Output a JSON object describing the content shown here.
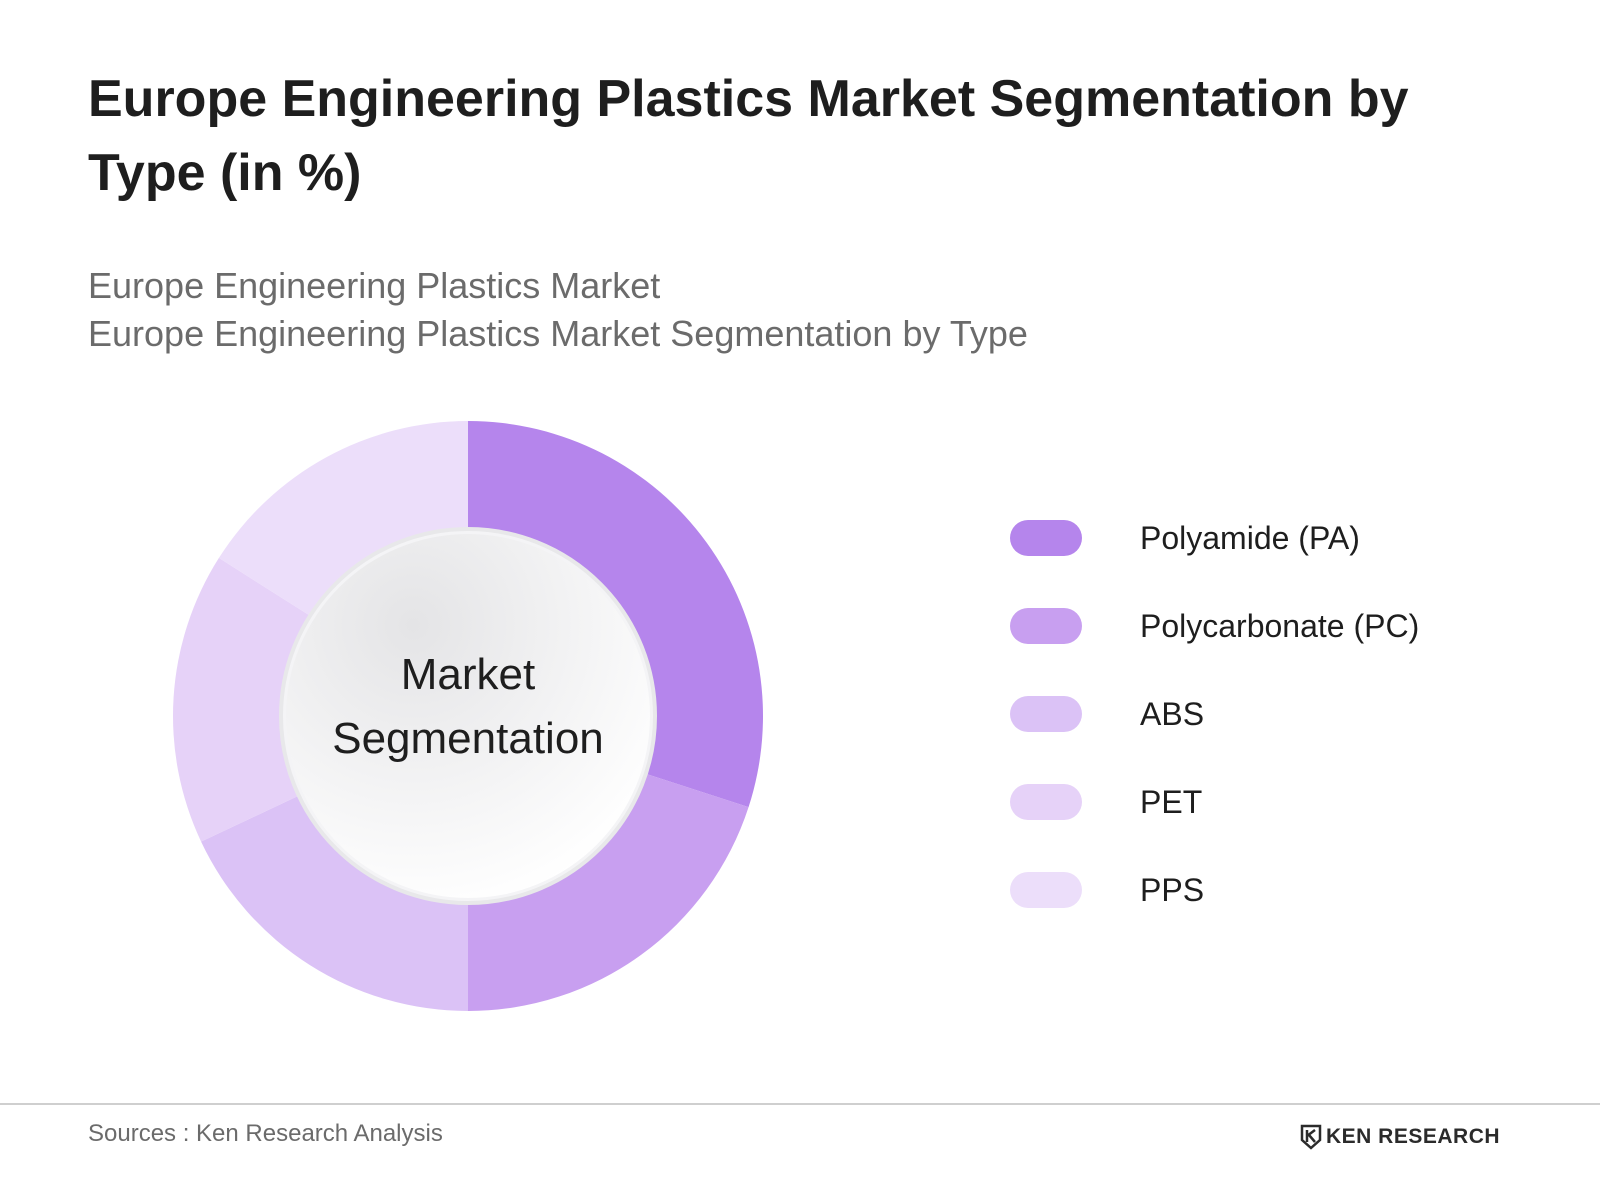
{
  "title": "Europe Engineering Plastics Market Segmentation by Type (in %)",
  "subtitle": {
    "line1": "Europe Engineering Plastics Market",
    "line2": "Europe Engineering Plastics Market Segmentation by Type"
  },
  "chart_data": {
    "type": "pie",
    "donut": true,
    "center_label": [
      "Market",
      "Segmentation"
    ],
    "categories": [
      "Polyamide (PA)",
      "Polycarbonate (PC)",
      "ABS",
      "PET",
      "PPS"
    ],
    "values": [
      30,
      20,
      18,
      16,
      16
    ],
    "colors": [
      "#b585ec",
      "#c89ff0",
      "#dbc2f6",
      "#e6d2f8",
      "#ecdefa"
    ],
    "legend_position": "right"
  },
  "footer": {
    "source": "Sources : Ken Research Analysis",
    "brand": "KEN RESEARCH"
  }
}
